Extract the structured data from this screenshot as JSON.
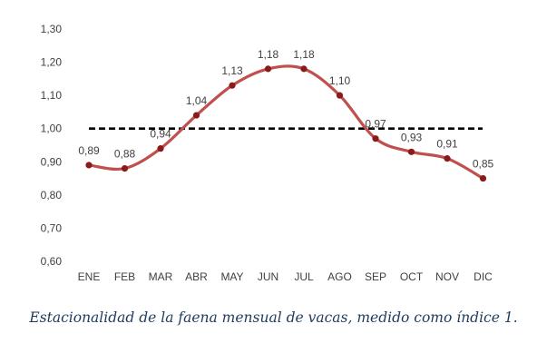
{
  "chart_data": {
    "type": "line",
    "categories": [
      "ENE",
      "FEB",
      "MAR",
      "ABR",
      "MAY",
      "JUN",
      "JUL",
      "AGO",
      "SEP",
      "OCT",
      "NOV",
      "DIC"
    ],
    "series": [
      {
        "values": [
          0.89,
          0.88,
          0.94,
          1.04,
          1.13,
          1.18,
          1.18,
          1.1,
          0.97,
          0.93,
          0.91,
          0.85
        ],
        "data_labels": [
          "0,89",
          "0,88",
          "0,94",
          "1,04",
          "1,13",
          "1,18",
          "1,18",
          "1,10",
          "0,97",
          "0,93",
          "0,91",
          "0,85"
        ],
        "color": "#c0504d",
        "marker_color": "#8b1a1a"
      }
    ],
    "reference_line": {
      "value": 1.0,
      "style": "dashed",
      "color": "#000000"
    },
    "ylim": [
      0.6,
      1.3
    ],
    "y_ticks": [
      0.6,
      0.7,
      0.8,
      0.9,
      1.0,
      1.1,
      1.2,
      1.3
    ],
    "y_tick_labels": [
      "0,60",
      "0,70",
      "0,80",
      "0,90",
      "1,00",
      "1,10",
      "1,20",
      "1,30"
    ],
    "grid": false,
    "legend": "none"
  },
  "caption": "Estacionalidad de la faena mensual de vacas, medido como índice 1."
}
